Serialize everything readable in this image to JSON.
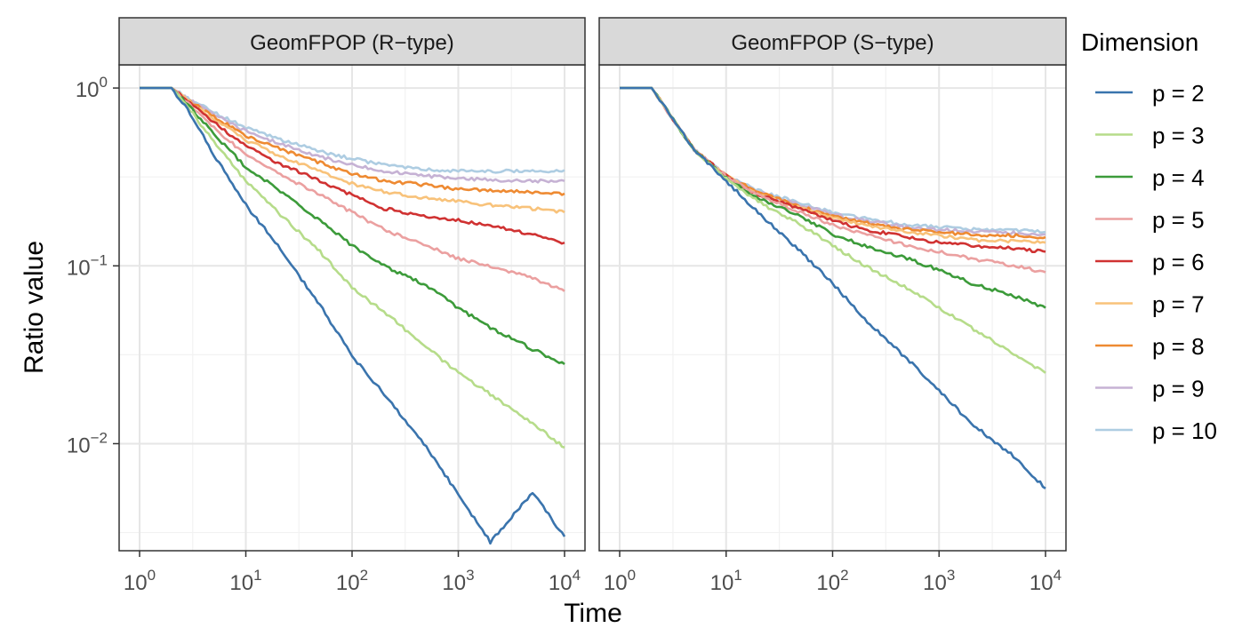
{
  "chart_data": {
    "type": "line",
    "xlabel": "Time",
    "ylabel": "Ratio value",
    "x_scale": "log10",
    "y_scale": "log10",
    "xlim": [
      1,
      10000
    ],
    "ylim": [
      0.0025,
      1.35
    ],
    "x_ticks": [
      {
        "value": 1,
        "base": "10",
        "exp": "0"
      },
      {
        "value": 10,
        "base": "10",
        "exp": "1"
      },
      {
        "value": 100,
        "base": "10",
        "exp": "2"
      },
      {
        "value": 1000,
        "base": "10",
        "exp": "3"
      },
      {
        "value": 10000,
        "base": "10",
        "exp": "4"
      }
    ],
    "y_ticks": [
      {
        "value": 1,
        "base": "10",
        "exp": "0"
      },
      {
        "value": 0.1,
        "base": "10",
        "exp": "−1"
      },
      {
        "value": 0.01,
        "base": "10",
        "exp": "−2"
      }
    ],
    "grid": true,
    "legend": {
      "title": "Dimension",
      "position": "right",
      "entries": [
        {
          "label": "p = 2",
          "color": "#3a74ad"
        },
        {
          "label": "p = 3",
          "color": "#b6dc8a"
        },
        {
          "label": "p = 4",
          "color": "#3c9b3a"
        },
        {
          "label": "p = 5",
          "color": "#eba0a0"
        },
        {
          "label": "p = 6",
          "color": "#d03232"
        },
        {
          "label": "p = 7",
          "color": "#f8c27a"
        },
        {
          "label": "p = 8",
          "color": "#ee8a32"
        },
        {
          "label": "p = 9",
          "color": "#c6b2d4"
        },
        {
          "label": "p = 10",
          "color": "#aecde2"
        }
      ]
    },
    "panels": [
      {
        "title": "GeomFPOP (R−type)",
        "series": [
          {
            "name": "p = 2",
            "x": [
              1,
              2,
              3,
              5,
              10,
              20,
              50,
              100,
              200,
              500,
              1000,
              2000,
              5000,
              10000
            ],
            "y": [
              1,
              1,
              0.72,
              0.42,
              0.22,
              0.13,
              0.06,
              0.031,
              0.019,
              0.0095,
              0.0052,
              0.0028,
              0.0053,
              0.003
            ]
          },
          {
            "name": "p = 3",
            "x": [
              1,
              2,
              3,
              5,
              10,
              20,
              50,
              100,
              200,
              500,
              1000,
              2000,
              5000,
              10000
            ],
            "y": [
              1,
              1,
              0.75,
              0.5,
              0.3,
              0.2,
              0.12,
              0.075,
              0.055,
              0.035,
              0.025,
              0.019,
              0.013,
              0.0095
            ]
          },
          {
            "name": "p = 4",
            "x": [
              1,
              2,
              3,
              5,
              10,
              20,
              50,
              100,
              200,
              500,
              1000,
              2000,
              5000,
              10000
            ],
            "y": [
              1,
              1,
              0.78,
              0.55,
              0.36,
              0.27,
              0.18,
              0.13,
              0.1,
              0.078,
              0.058,
              0.045,
              0.034,
              0.028
            ]
          },
          {
            "name": "p = 5",
            "x": [
              1,
              2,
              3,
              5,
              10,
              20,
              50,
              100,
              200,
              500,
              1000,
              2000,
              5000,
              10000
            ],
            "y": [
              1,
              1,
              0.8,
              0.6,
              0.42,
              0.33,
              0.25,
              0.2,
              0.16,
              0.13,
              0.11,
              0.1,
              0.085,
              0.072
            ]
          },
          {
            "name": "p = 6",
            "x": [
              1,
              2,
              3,
              5,
              10,
              20,
              50,
              100,
              200,
              500,
              1000,
              2000,
              5000,
              10000
            ],
            "y": [
              1,
              1,
              0.82,
              0.64,
              0.47,
              0.38,
              0.3,
              0.25,
              0.21,
              0.19,
              0.18,
              0.17,
              0.15,
              0.135
            ]
          },
          {
            "name": "p = 7",
            "x": [
              1,
              2,
              3,
              5,
              10,
              20,
              50,
              100,
              200,
              500,
              1000,
              2000,
              5000,
              10000
            ],
            "y": [
              1,
              1,
              0.83,
              0.67,
              0.51,
              0.42,
              0.34,
              0.29,
              0.26,
              0.24,
              0.23,
              0.22,
              0.21,
              0.2
            ]
          },
          {
            "name": "p = 8",
            "x": [
              1,
              2,
              3,
              5,
              10,
              20,
              50,
              100,
              200,
              500,
              1000,
              2000,
              5000,
              10000
            ],
            "y": [
              1,
              1,
              0.84,
              0.69,
              0.54,
              0.46,
              0.38,
              0.33,
              0.3,
              0.285,
              0.27,
              0.265,
              0.26,
              0.255
            ]
          },
          {
            "name": "p = 9",
            "x": [
              1,
              2,
              3,
              5,
              10,
              20,
              50,
              100,
              200,
              500,
              1000,
              2000,
              5000,
              10000
            ],
            "y": [
              1,
              1,
              0.85,
              0.71,
              0.57,
              0.49,
              0.41,
              0.37,
              0.34,
              0.32,
              0.31,
              0.305,
              0.3,
              0.3
            ]
          },
          {
            "name": "p = 10",
            "x": [
              1,
              2,
              3,
              5,
              10,
              20,
              50,
              100,
              200,
              500,
              1000,
              2000,
              5000,
              10000
            ],
            "y": [
              1,
              1,
              0.86,
              0.73,
              0.6,
              0.52,
              0.44,
              0.4,
              0.37,
              0.35,
              0.34,
              0.34,
              0.34,
              0.345
            ]
          }
        ]
      },
      {
        "title": "GeomFPOP (S−type)",
        "series": [
          {
            "name": "p = 2",
            "x": [
              1,
              2,
              3,
              5,
              10,
              20,
              50,
              100,
              200,
              500,
              1000,
              2000,
              5000,
              10000
            ],
            "y": [
              1,
              1,
              0.7,
              0.45,
              0.3,
              0.2,
              0.12,
              0.08,
              0.05,
              0.03,
              0.02,
              0.013,
              0.0085,
              0.0056
            ]
          },
          {
            "name": "p = 3",
            "x": [
              1,
              2,
              3,
              5,
              10,
              20,
              50,
              100,
              200,
              500,
              1000,
              2000,
              5000,
              10000
            ],
            "y": [
              1,
              1,
              0.7,
              0.45,
              0.31,
              0.23,
              0.17,
              0.13,
              0.1,
              0.075,
              0.058,
              0.045,
              0.032,
              0.025
            ]
          },
          {
            "name": "p = 4",
            "x": [
              1,
              2,
              3,
              5,
              10,
              20,
              50,
              100,
              200,
              500,
              1000,
              2000,
              5000,
              10000
            ],
            "y": [
              1,
              1,
              0.7,
              0.45,
              0.31,
              0.24,
              0.19,
              0.15,
              0.13,
              0.11,
              0.095,
              0.08,
              0.068,
              0.058
            ]
          },
          {
            "name": "p = 5",
            "x": [
              1,
              2,
              3,
              5,
              10,
              20,
              50,
              100,
              200,
              500,
              1000,
              2000,
              5000,
              10000
            ],
            "y": [
              1,
              1,
              0.7,
              0.45,
              0.32,
              0.25,
              0.2,
              0.17,
              0.15,
              0.13,
              0.12,
              0.11,
              0.1,
              0.092
            ]
          },
          {
            "name": "p = 6",
            "x": [
              1,
              2,
              3,
              5,
              10,
              20,
              50,
              100,
              200,
              500,
              1000,
              2000,
              5000,
              10000
            ],
            "y": [
              1,
              1,
              0.7,
              0.45,
              0.32,
              0.25,
              0.21,
              0.18,
              0.16,
              0.145,
              0.135,
              0.13,
              0.125,
              0.12
            ]
          },
          {
            "name": "p = 7",
            "x": [
              1,
              2,
              3,
              5,
              10,
              20,
              50,
              100,
              200,
              500,
              1000,
              2000,
              5000,
              10000
            ],
            "y": [
              1,
              1,
              0.7,
              0.45,
              0.32,
              0.255,
              0.21,
              0.185,
              0.17,
              0.155,
              0.148,
              0.14,
              0.137,
              0.135
            ]
          },
          {
            "name": "p = 8",
            "x": [
              1,
              2,
              3,
              5,
              10,
              20,
              50,
              100,
              200,
              500,
              1000,
              2000,
              5000,
              10000
            ],
            "y": [
              1,
              1,
              0.7,
              0.45,
              0.32,
              0.26,
              0.215,
              0.19,
              0.175,
              0.16,
              0.155,
              0.15,
              0.148,
              0.145
            ]
          },
          {
            "name": "p = 9",
            "x": [
              1,
              2,
              3,
              5,
              10,
              20,
              50,
              100,
              200,
              500,
              1000,
              2000,
              5000,
              10000
            ],
            "y": [
              1,
              1,
              0.7,
              0.45,
              0.32,
              0.26,
              0.22,
              0.195,
              0.18,
              0.165,
              0.16,
              0.156,
              0.153,
              0.15
            ]
          },
          {
            "name": "p = 10",
            "x": [
              1,
              2,
              3,
              5,
              10,
              20,
              50,
              100,
              200,
              500,
              1000,
              2000,
              5000,
              10000
            ],
            "y": [
              1,
              1,
              0.7,
              0.45,
              0.32,
              0.265,
              0.225,
              0.2,
              0.185,
              0.17,
              0.165,
              0.16,
              0.158,
              0.155
            ]
          }
        ]
      }
    ]
  }
}
